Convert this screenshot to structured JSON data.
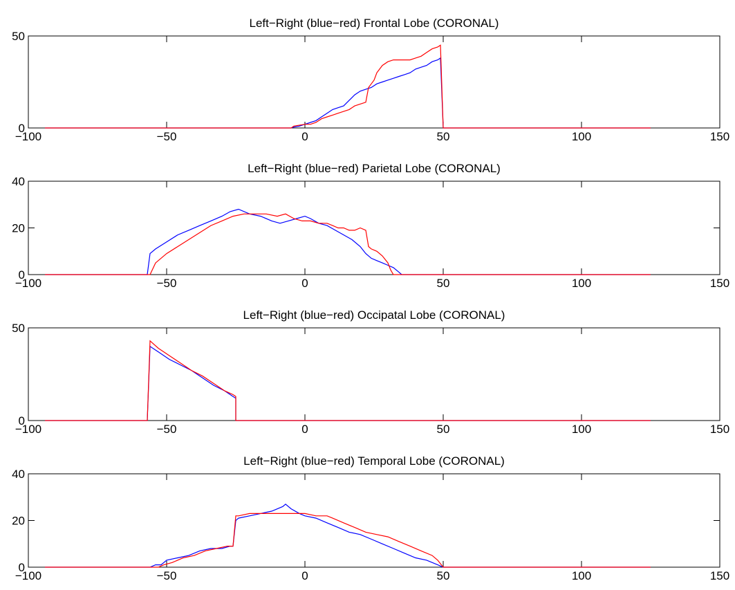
{
  "chart_data": [
    {
      "type": "line",
      "title": "Left−Right (blue−red) Frontal Lobe (CORONAL)",
      "xlabel": "",
      "ylabel": "",
      "xlim": [
        -100,
        150
      ],
      "ylim": [
        0,
        50
      ],
      "xticks": [
        -100,
        -50,
        0,
        50,
        100,
        150
      ],
      "yticks": [
        0,
        50
      ],
      "xtick_labels": [
        "−100",
        "−50",
        "0",
        "50",
        "100",
        "150"
      ],
      "ytick_labels": [
        "0",
        "50"
      ],
      "grid": false,
      "series": [
        {
          "color": "#0000ff",
          "x": [
            -94,
            -5,
            -4,
            -2,
            0,
            2,
            4,
            6,
            8,
            10,
            12,
            14,
            16,
            18,
            20,
            22,
            24,
            26,
            28,
            30,
            32,
            34,
            36,
            38,
            40,
            42,
            44,
            46,
            48,
            49,
            50,
            125
          ],
          "y": [
            0,
            0,
            0.5,
            1,
            2,
            3,
            4,
            6,
            8,
            10,
            11,
            12,
            15,
            18,
            20,
            21,
            22,
            24,
            25,
            26,
            27,
            28,
            29,
            30,
            32,
            33,
            34,
            36,
            37,
            38,
            0,
            0
          ]
        },
        {
          "color": "#ff0000",
          "x": [
            -94,
            -5,
            -4,
            0,
            2,
            4,
            6,
            8,
            10,
            12,
            14,
            16,
            18,
            20,
            22,
            23,
            24,
            25,
            26,
            28,
            30,
            32,
            34,
            36,
            38,
            40,
            42,
            44,
            46,
            48,
            49,
            50,
            125
          ],
          "y": [
            0,
            0,
            1,
            2,
            2,
            3,
            5,
            6,
            7,
            8,
            9,
            10,
            12,
            13,
            14,
            22,
            24,
            26,
            30,
            34,
            36,
            37,
            37,
            37,
            37,
            38,
            39,
            41,
            43,
            44,
            45,
            0,
            0
          ]
        }
      ]
    },
    {
      "type": "line",
      "title": "Left−Right (blue−red) Parietal Lobe (CORONAL)",
      "xlabel": "",
      "ylabel": "",
      "xlim": [
        -100,
        150
      ],
      "ylim": [
        0,
        40
      ],
      "xticks": [
        -100,
        -50,
        0,
        50,
        100,
        150
      ],
      "yticks": [
        0,
        20,
        40
      ],
      "xtick_labels": [
        "−100",
        "−50",
        "0",
        "50",
        "100",
        "150"
      ],
      "ytick_labels": [
        "0",
        "20",
        "40"
      ],
      "grid": false,
      "series": [
        {
          "color": "#0000ff",
          "x": [
            -94,
            -57,
            -56,
            -54,
            -50,
            -46,
            -42,
            -38,
            -34,
            -30,
            -27,
            -24,
            -20,
            -16,
            -12,
            -9,
            -6,
            -3,
            0,
            2,
            5,
            8,
            11,
            14,
            17,
            20,
            22,
            24,
            26,
            28,
            30,
            32,
            34,
            35,
            125
          ],
          "y": [
            0,
            0,
            9,
            11,
            14,
            17,
            19,
            21,
            23,
            25,
            27,
            28,
            26,
            25,
            23,
            22,
            23,
            24,
            25,
            24,
            22,
            21,
            19,
            17,
            15,
            12,
            9,
            7,
            6,
            5,
            4,
            3,
            1,
            0,
            0
          ]
        },
        {
          "color": "#ff0000",
          "x": [
            -94,
            -56,
            -54,
            -50,
            -46,
            -42,
            -38,
            -34,
            -30,
            -26,
            -22,
            -18,
            -14,
            -10,
            -7,
            -4,
            -1,
            2,
            5,
            8,
            10,
            12,
            14,
            16,
            18,
            20,
            22,
            23,
            24,
            26,
            28,
            30,
            31,
            32,
            125
          ],
          "y": [
            0,
            0,
            5,
            9,
            12,
            15,
            18,
            21,
            23,
            25,
            26,
            26,
            26,
            25,
            26,
            24,
            23,
            23,
            22,
            22,
            21,
            20,
            20,
            19,
            19,
            20,
            19,
            12,
            11,
            10,
            8,
            5,
            2,
            0,
            0
          ]
        }
      ]
    },
    {
      "type": "line",
      "title": "Left−Right (blue−red) Occipatal Lobe (CORONAL)",
      "xlabel": "",
      "ylabel": "",
      "xlim": [
        -100,
        150
      ],
      "ylim": [
        0,
        50
      ],
      "xticks": [
        -100,
        -50,
        0,
        50,
        100,
        150
      ],
      "yticks": [
        0,
        50
      ],
      "xtick_labels": [
        "−100",
        "−50",
        "0",
        "50",
        "100",
        "150"
      ],
      "ytick_labels": [
        "0",
        "50"
      ],
      "grid": false,
      "series": [
        {
          "color": "#0000ff",
          "x": [
            -94,
            -57,
            -56,
            -53,
            -49,
            -45,
            -41,
            -37,
            -33,
            -29,
            -26,
            -25,
            -25,
            125
          ],
          "y": [
            0,
            0,
            40,
            37,
            33,
            30,
            27,
            23,
            19,
            16,
            13,
            12,
            0,
            0
          ]
        },
        {
          "color": "#ff0000",
          "x": [
            -94,
            -57,
            -56,
            -53,
            -49,
            -45,
            -41,
            -37,
            -33,
            -29,
            -26,
            -25,
            -25,
            125
          ],
          "y": [
            0,
            0,
            43,
            39,
            35,
            31,
            27,
            24,
            20,
            16,
            14,
            13,
            0,
            0
          ]
        }
      ]
    },
    {
      "type": "line",
      "title": "Left−Right (blue−red) Temporal Lobe (CORONAL)",
      "xlabel": "",
      "ylabel": "",
      "xlim": [
        -100,
        150
      ],
      "ylim": [
        0,
        40
      ],
      "xticks": [
        -100,
        -50,
        0,
        50,
        100,
        150
      ],
      "yticks": [
        0,
        20,
        40
      ],
      "xtick_labels": [
        "−100",
        "−50",
        "0",
        "50",
        "100",
        "150"
      ],
      "ytick_labels": [
        "0",
        "20",
        "40"
      ],
      "grid": false,
      "series": [
        {
          "color": "#0000ff",
          "x": [
            -94,
            -56,
            -54,
            -52,
            -50,
            -46,
            -42,
            -38,
            -34,
            -30,
            -27,
            -26,
            -25,
            -24,
            -20,
            -16,
            -12,
            -8,
            -7,
            -5,
            -2,
            0,
            4,
            8,
            12,
            16,
            20,
            24,
            28,
            32,
            36,
            40,
            44,
            48,
            50,
            125
          ],
          "y": [
            0,
            0,
            1,
            1,
            3,
            4,
            5,
            7,
            8,
            8,
            9,
            9,
            20,
            21,
            22,
            23,
            24,
            26,
            27,
            25,
            23,
            22,
            21,
            19,
            17,
            15,
            14,
            12,
            10,
            8,
            6,
            4,
            3,
            1,
            0,
            0
          ]
        },
        {
          "color": "#ff0000",
          "x": [
            -94,
            -53,
            -51,
            -48,
            -44,
            -40,
            -36,
            -32,
            -28,
            -26,
            -25,
            -24,
            -20,
            -16,
            -12,
            -8,
            -4,
            0,
            4,
            8,
            10,
            14,
            18,
            22,
            26,
            30,
            34,
            38,
            42,
            46,
            48,
            50,
            125
          ],
          "y": [
            0,
            0,
            1,
            2,
            4,
            5,
            7,
            8,
            9,
            9,
            22,
            22,
            23,
            23,
            23,
            23,
            23,
            23,
            22,
            22,
            21,
            19,
            17,
            15,
            14,
            13,
            11,
            9,
            7,
            5,
            3,
            0,
            0
          ]
        }
      ]
    }
  ]
}
